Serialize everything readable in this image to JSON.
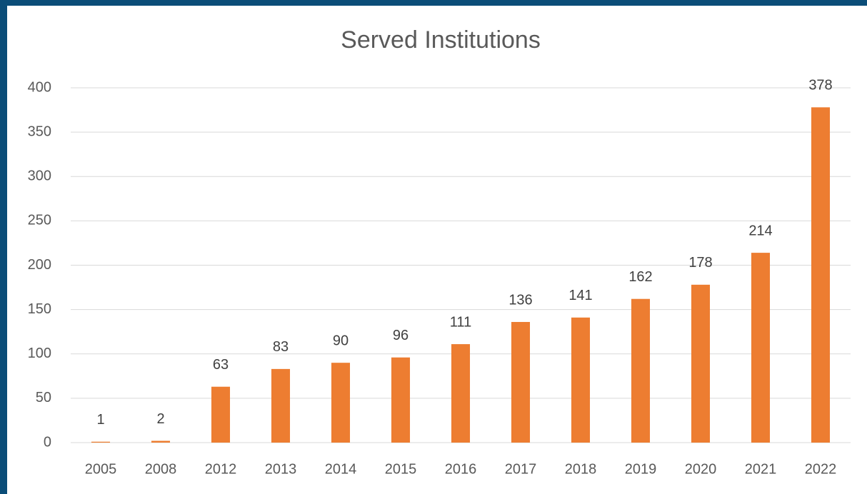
{
  "chart_data": {
    "type": "bar",
    "title": "Served Institutions",
    "categories": [
      "2005",
      "2008",
      "2012",
      "2013",
      "2014",
      "2015",
      "2016",
      "2017",
      "2018",
      "2019",
      "2020",
      "2021",
      "2022"
    ],
    "values": [
      1,
      2,
      63,
      83,
      90,
      96,
      111,
      136,
      141,
      162,
      178,
      214,
      378
    ],
    "color": "#ed7d31",
    "ylim": [
      0,
      400
    ],
    "yticks": [
      0,
      50,
      100,
      150,
      200,
      250,
      300,
      350,
      400
    ],
    "grid": true
  }
}
